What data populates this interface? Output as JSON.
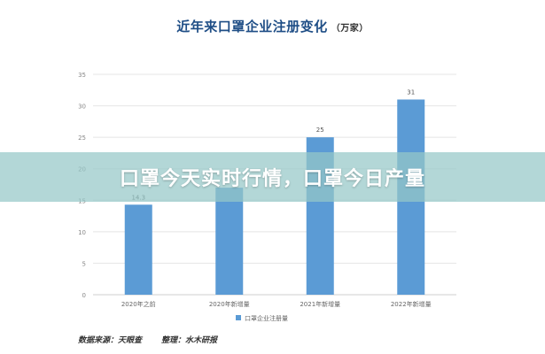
{
  "chart_data": {
    "type": "bar",
    "title": "近年来口罩企业注册变化",
    "unit": "（万家）",
    "categories": [
      "2020年之前",
      "2020年新增量",
      "2021年新增量",
      "2022年新增量"
    ],
    "series": [
      {
        "name": "口罩企业注册量",
        "values": [
          14.3,
          17,
          25,
          31
        ]
      }
    ],
    "data_labels": [
      "14.3",
      "",
      "25",
      "31"
    ],
    "y_ticks": [
      0,
      5,
      10,
      15,
      20,
      25,
      30,
      35
    ],
    "ylim": [
      0,
      35
    ],
    "grid": true,
    "legend": "bottom",
    "bar_color": "#5b9bd5"
  },
  "banner": {
    "text": "口罩今天实时行情，口罩今日产量"
  },
  "footer": {
    "source": "数据来源：天眼查",
    "editor": "整理：水木研报"
  }
}
